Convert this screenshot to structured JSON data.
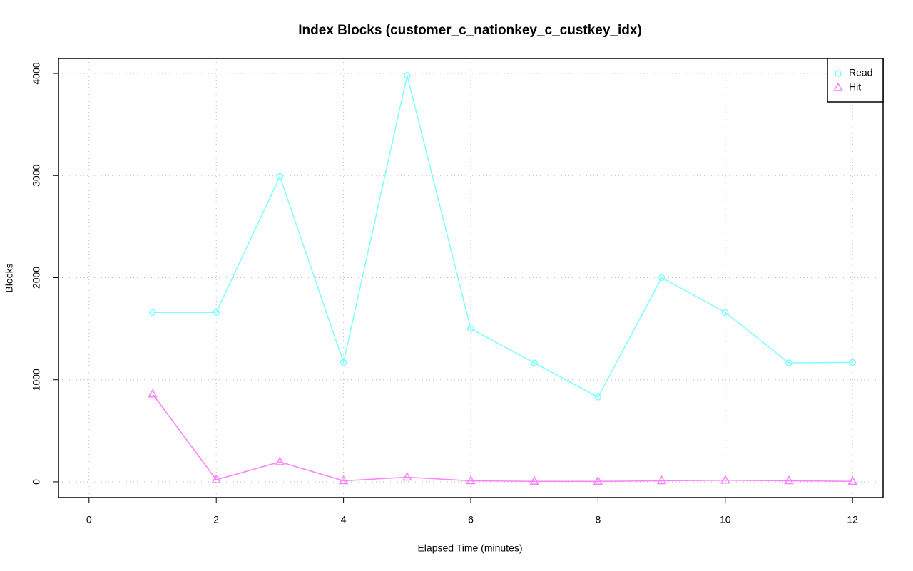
{
  "chart_data": {
    "type": "line",
    "title": "Index Blocks (customer_c_nationkey_c_custkey_idx)",
    "x_label": "Elapsed Time (minutes)",
    "y_label": "Blocks",
    "x": [
      1,
      2,
      3,
      4,
      5,
      6,
      7,
      8,
      9,
      10,
      11,
      12
    ],
    "series": [
      {
        "name": "Read",
        "color": "#7fffff",
        "marker": "circle",
        "values": [
          1660,
          1660,
          2990,
          1170,
          3980,
          1500,
          1165,
          830,
          2000,
          1660,
          1165,
          1170
        ]
      },
      {
        "name": "Hit",
        "color": "#ff7fff",
        "marker": "triangle",
        "values": [
          860,
          20,
          195,
          10,
          45,
          10,
          5,
          5,
          10,
          15,
          10,
          5
        ]
      }
    ],
    "xlim": [
      -0.48,
      12.48
    ],
    "xticks": [
      0,
      2,
      4,
      6,
      8,
      10,
      12
    ],
    "ylim": [
      -154,
      4147
    ],
    "yticks": [
      0,
      1000,
      2000,
      3000,
      4000
    ],
    "grid": true,
    "legend": "top-right"
  }
}
